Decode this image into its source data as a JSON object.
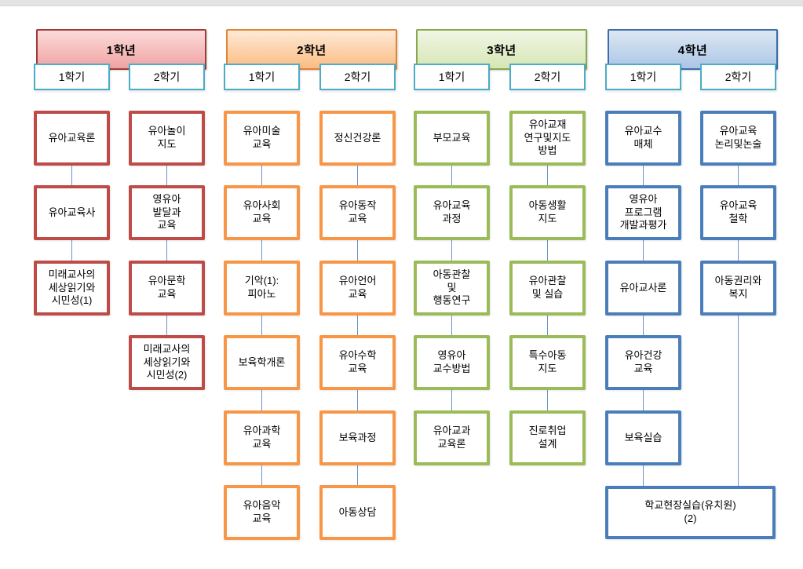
{
  "ui": {
    "semester_tab_border": "#4BACC6",
    "connector_color": "#6B93C9"
  },
  "years": [
    {
      "label": "1학년",
      "colors": {
        "box_border": "#BE4B48",
        "header_border": "#9E3B39",
        "header_grad_top": "#FBDBDA",
        "header_grad_bottom": "#EFA3A2"
      },
      "semesters": [
        {
          "label": "1학기",
          "courses": [
            [
              "유아교육론"
            ],
            [
              "유아교육사"
            ],
            [
              "미래교사의",
              "세상읽기와",
              "시민성(1)"
            ]
          ]
        },
        {
          "label": "2학기",
          "courses": [
            [
              "유아놀이",
              "지도"
            ],
            [
              "영유아",
              "발달과",
              "교육"
            ],
            [
              "유아문학",
              "교육"
            ],
            [
              "미래교사의",
              "세상읽기와",
              "시민성(2)"
            ]
          ]
        }
      ]
    },
    {
      "label": "2학년",
      "colors": {
        "box_border": "#F79646",
        "header_border": "#E08435",
        "header_grad_top": "#FDEAD6",
        "header_grad_bottom": "#FBBC83"
      },
      "semesters": [
        {
          "label": "1학기",
          "courses": [
            [
              "유아미술",
              "교육"
            ],
            [
              "유아사회",
              "교육"
            ],
            [
              "기악(1):",
              "피아노"
            ],
            [
              "보육학개론"
            ],
            [
              "유아과학",
              "교육"
            ],
            [
              "유아음악",
              "교육"
            ]
          ]
        },
        {
          "label": "2학기",
          "courses": [
            [
              "정신건강론"
            ],
            [
              "유아동작",
              "교육"
            ],
            [
              "유아언어",
              "교육"
            ],
            [
              "유아수학",
              "교육"
            ],
            [
              "보육과정"
            ],
            [
              "아동상담"
            ]
          ]
        }
      ]
    },
    {
      "label": "3학년",
      "colors": {
        "box_border": "#9BBB59",
        "header_border": "#89A84B",
        "header_grad_top": "#F0F6E5",
        "header_grad_bottom": "#D7E6B5"
      },
      "semesters": [
        {
          "label": "1학기",
          "courses": [
            [
              "부모교육"
            ],
            [
              "유아교육",
              "과정"
            ],
            [
              "아동관찰",
              "및",
              "행동연구"
            ],
            [
              "영유아",
              "교수방법"
            ],
            [
              "유아교과",
              "교육론"
            ]
          ]
        },
        {
          "label": "2학기",
          "courses": [
            [
              "유아교재",
              "연구및지도",
              "방법"
            ],
            [
              "아동생활",
              "지도"
            ],
            [
              "유아관찰",
              "및 실습"
            ],
            [
              "특수아동",
              "지도"
            ],
            [
              "진로취업",
              "설계"
            ]
          ]
        }
      ]
    },
    {
      "label": "4학년",
      "colors": {
        "box_border": "#4A7EBB",
        "header_border": "#3D6DA8",
        "header_grad_top": "#DDE7F3",
        "header_grad_bottom": "#ABC6E6"
      },
      "semesters": [
        {
          "label": "1학기",
          "courses": [
            [
              "유아교수",
              "매체"
            ],
            [
              "영유아",
              "프로그램",
              "개발과평가"
            ],
            [
              "유아교사론"
            ],
            [
              "유아건강",
              "교육"
            ],
            [
              "보육실습"
            ]
          ]
        },
        {
          "label": "2학기",
          "courses": [
            [
              "유아교육",
              "논리및논술"
            ],
            [
              "유아교육",
              "철학"
            ],
            [
              "아동권리와",
              "복지"
            ]
          ]
        }
      ]
    }
  ],
  "shared_course": {
    "lines": [
      "학교현장실습(유치원)",
      "(2)"
    ]
  }
}
